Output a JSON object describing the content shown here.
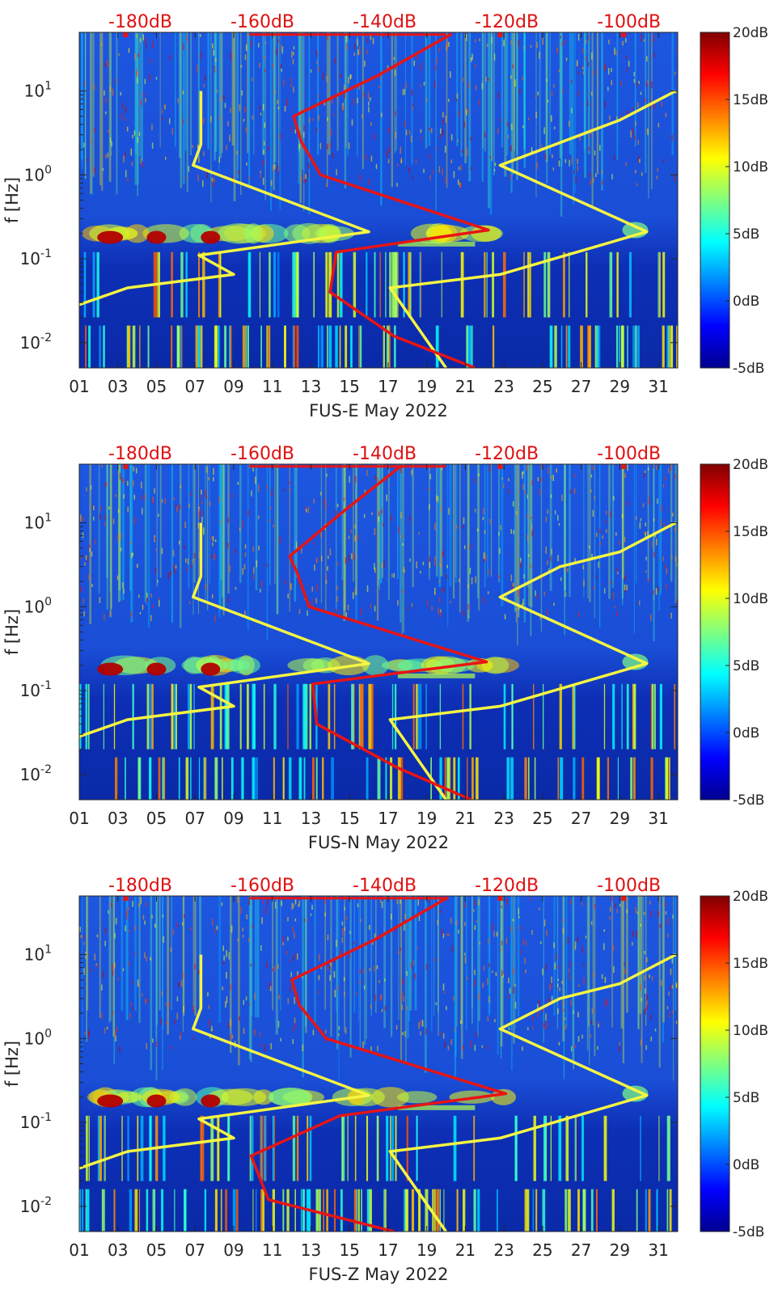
{
  "colors": {
    "spectrogram_low": "#00008f",
    "spectrogram_mid": "#19a8f0",
    "spectrogram_high": "#800000",
    "model_curves": "#f5f542",
    "noise_curve": "#e81414",
    "top_labels": "#e01010"
  },
  "chart_data": [
    {
      "type": "heatmap",
      "xlabel": "FUS-E May 2022",
      "ylabel": "f [Hz]",
      "x_ticks": [
        "01",
        "03",
        "05",
        "07",
        "09",
        "11",
        "13",
        "15",
        "17",
        "19",
        "21",
        "23",
        "25",
        "27",
        "29",
        "31"
      ],
      "y_ticks": [
        "10^{-2}",
        "10^{-1}",
        "10^{0}",
        "10^{1}"
      ],
      "y_scale": "log",
      "ylim": [
        0.005,
        50
      ],
      "xlim": [
        1,
        32
      ],
      "top_axis_ticks": [
        "-180dB",
        "-160dB",
        "-140dB",
        "-120dB",
        "-100dB"
      ],
      "top_axis_range_dB": [
        -190,
        -92
      ],
      "colorbar": {
        "ticks": [
          "20dB",
          "15dB",
          "10dB",
          "5dB",
          "0dB",
          "-5dB"
        ],
        "range": [
          -5,
          20
        ]
      },
      "series": [
        {
          "name": "",
          "color": "yellow",
          "x": [
            7.3,
            7.3,
            6.9,
            16.0,
            7.2,
            9.0,
            3.5,
            0.1,
            0.1,
            0.3
          ],
          "y": [
            10,
            2.3,
            1.3,
            0.21,
            0.11,
            0.065,
            0.045,
            0.024,
            0.015,
            0.005
          ]
        },
        {
          "name": "",
          "color": "yellow",
          "x": [
            31.9,
            29.0,
            22.8,
            30.4,
            22.8,
            17.1,
            20.0
          ],
          "y": [
            10,
            4.5,
            1.3,
            0.21,
            0.065,
            0.045,
            0.005
          ]
        },
        {
          "name": "",
          "color": "red",
          "x": [
            20.3,
            16.4,
            12.1,
            12.5,
            13.5,
            22.2,
            14.3,
            14.0,
            17.3,
            21.5
          ],
          "y": [
            48,
            15,
            5,
            2.5,
            1.0,
            0.22,
            0.12,
            0.04,
            0.012,
            0.005
          ]
        }
      ]
    },
    {
      "type": "heatmap",
      "xlabel": "FUS-N May 2022",
      "ylabel": "f [Hz]",
      "x_ticks": [
        "01",
        "03",
        "05",
        "07",
        "09",
        "11",
        "13",
        "15",
        "17",
        "19",
        "21",
        "23",
        "25",
        "27",
        "29",
        "31"
      ],
      "y_ticks": [
        "10^{-2}",
        "10^{-1}",
        "10^{0}",
        "10^{1}"
      ],
      "y_scale": "log",
      "ylim": [
        0.005,
        50
      ],
      "xlim": [
        1,
        32
      ],
      "top_axis_ticks": [
        "-180dB",
        "-160dB",
        "-140dB",
        "-120dB",
        "-100dB"
      ],
      "top_axis_range_dB": [
        -190,
        -92
      ],
      "colorbar": {
        "ticks": [
          "20dB",
          "15dB",
          "10dB",
          "5dB",
          "0dB",
          "-5dB"
        ],
        "range": [
          -5,
          20
        ]
      },
      "series": [
        {
          "name": "",
          "color": "yellow",
          "x": [
            7.3,
            7.3,
            6.9,
            16.0,
            7.2,
            9.0,
            3.5,
            0.1,
            0.1,
            0.3
          ],
          "y": [
            10,
            2.3,
            1.3,
            0.21,
            0.11,
            0.065,
            0.045,
            0.024,
            0.015,
            0.005
          ]
        },
        {
          "name": "",
          "color": "yellow",
          "x": [
            31.9,
            29.0,
            25.9,
            22.8,
            30.4,
            22.8,
            17.1,
            20.0
          ],
          "y": [
            10,
            4.5,
            3.0,
            1.3,
            0.21,
            0.065,
            0.045,
            0.005
          ]
        },
        {
          "name": "",
          "color": "red",
          "x": [
            17.7,
            14.9,
            11.9,
            12.3,
            12.9,
            22.1,
            13.1,
            13.3,
            17.5,
            21.3
          ],
          "y": [
            48,
            15,
            4,
            2.5,
            1.0,
            0.22,
            0.12,
            0.04,
            0.012,
            0.005
          ]
        }
      ]
    },
    {
      "type": "heatmap",
      "xlabel": "FUS-Z May 2022",
      "ylabel": "f [Hz]",
      "x_ticks": [
        "01",
        "03",
        "05",
        "07",
        "09",
        "11",
        "13",
        "15",
        "17",
        "19",
        "21",
        "23",
        "25",
        "27",
        "29",
        "31"
      ],
      "y_ticks": [
        "10^{-2}",
        "10^{-1}",
        "10^{0}",
        "10^{1}"
      ],
      "y_scale": "log",
      "ylim": [
        0.005,
        50
      ],
      "xlim": [
        1,
        32
      ],
      "top_axis_ticks": [
        "-180dB",
        "-160dB",
        "-140dB",
        "-120dB",
        "-100dB"
      ],
      "top_axis_range_dB": [
        -190,
        -92
      ],
      "colorbar": {
        "ticks": [
          "20dB",
          "15dB",
          "10dB",
          "5dB",
          "0dB",
          "-5dB"
        ],
        "range": [
          -5,
          20
        ]
      },
      "series": [
        {
          "name": "",
          "color": "yellow",
          "x": [
            7.3,
            7.3,
            6.9,
            16.0,
            7.2,
            9.0,
            3.5,
            0.1,
            0.1,
            0.3
          ],
          "y": [
            10,
            2.3,
            1.3,
            0.21,
            0.11,
            0.065,
            0.045,
            0.024,
            0.015,
            0.005
          ]
        },
        {
          "name": "",
          "color": "yellow",
          "x": [
            31.9,
            29.0,
            25.9,
            22.8,
            30.4,
            22.8,
            17.1,
            20.0
          ],
          "y": [
            10,
            4.5,
            3.0,
            1.3,
            0.21,
            0.065,
            0.045,
            0.005
          ]
        },
        {
          "name": "",
          "color": "red",
          "x": [
            20.1,
            16.3,
            12.0,
            12.4,
            13.8,
            23.1,
            14.5,
            9.9,
            10.8,
            17.3
          ],
          "y": [
            48,
            15,
            5,
            2.5,
            1.0,
            0.22,
            0.12,
            0.04,
            0.012,
            0.005
          ]
        }
      ]
    }
  ]
}
